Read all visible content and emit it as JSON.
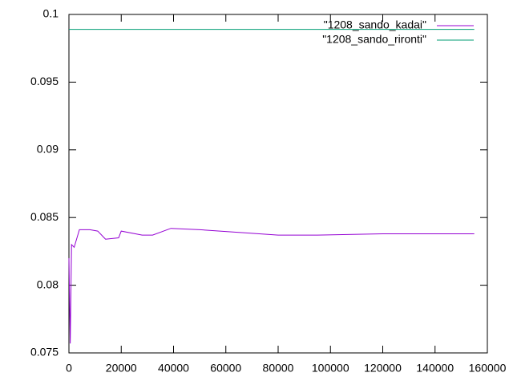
{
  "chart_data": {
    "type": "line",
    "xlim": [
      0,
      160000
    ],
    "xticks": [
      0,
      20000,
      40000,
      60000,
      80000,
      100000,
      120000,
      140000,
      160000
    ],
    "ylim": [
      0.075,
      0.1
    ],
    "yticks": [
      0.075,
      0.08,
      0.085,
      0.09,
      0.095,
      0.1
    ],
    "legend": "upper right",
    "series": [
      {
        "name": "\"1208_sando_kadai\"",
        "color": "#9400d3",
        "x": [
          0,
          500,
          1000,
          2000,
          4000,
          8000,
          11000,
          14000,
          19000,
          20000,
          28000,
          32000,
          39000,
          50000,
          65000,
          80000,
          95000,
          120000,
          135000,
          155000
        ],
        "values": [
          0.082,
          0.0757,
          0.083,
          0.0828,
          0.0841,
          0.0841,
          0.084,
          0.0834,
          0.0835,
          0.084,
          0.0837,
          0.0837,
          0.0842,
          0.0841,
          0.0839,
          0.0837,
          0.0837,
          0.0838,
          0.0838,
          0.0838
        ]
      },
      {
        "name": "\"1208_sando_rironti\"",
        "color": "#009e73",
        "x": [
          0,
          155000
        ],
        "values": [
          0.0989,
          0.0989
        ]
      }
    ]
  }
}
